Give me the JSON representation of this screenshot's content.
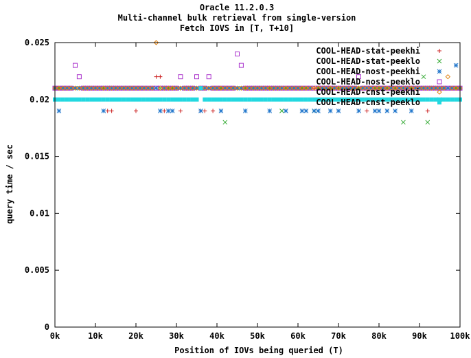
{
  "chart_data": {
    "type": "scatter",
    "title_lines": [
      "Oracle 11.2.0.3",
      "Multi-channel bulk retrieval from single-version",
      "Fetch IOVS in [T, T+10]"
    ],
    "xlabel": "Position of IOVs being queried (T)",
    "ylabel": "query time / sec",
    "xlim": [
      0,
      100000
    ],
    "ylim": [
      0,
      0.025
    ],
    "x_ticks": [
      0,
      10000,
      20000,
      30000,
      40000,
      50000,
      60000,
      70000,
      80000,
      90000,
      100000
    ],
    "x_tick_labels": [
      "0k",
      "10k",
      "20k",
      "30k",
      "40k",
      "50k",
      "60k",
      "70k",
      "80k",
      "90k",
      "100k"
    ],
    "y_ticks": [
      0,
      0.005,
      0.01,
      0.015,
      0.02,
      0.025
    ],
    "y_tick_labels": [
      "0",
      "0.005",
      "0.01",
      "0.015",
      "0.02",
      "0.025"
    ],
    "grid": false,
    "legend_position": "top-right",
    "series": [
      {
        "name": "COOL-HEAD-stat-peekhi",
        "color": "#cc2222",
        "marker": "plus",
        "base": 0.021,
        "points": [
          [
            13000,
            0.019
          ],
          [
            14000,
            0.019
          ],
          [
            20000,
            0.019
          ],
          [
            25000,
            0.022
          ],
          [
            26000,
            0.022
          ],
          [
            27000,
            0.019
          ],
          [
            31000,
            0.019
          ],
          [
            36000,
            0.019
          ],
          [
            37000,
            0.019
          ],
          [
            39000,
            0.019
          ],
          [
            77000,
            0.019
          ],
          [
            92000,
            0.019
          ]
        ]
      },
      {
        "name": "COOL-HEAD-stat-peeklo",
        "color": "#33aa33",
        "marker": "x",
        "base": 0.021,
        "points": [
          [
            42000,
            0.018
          ],
          [
            56000,
            0.019
          ],
          [
            64000,
            0.019
          ],
          [
            86000,
            0.018
          ],
          [
            91000,
            0.022
          ],
          [
            92000,
            0.018
          ],
          [
            95000,
            0.02
          ]
        ]
      },
      {
        "name": "COOL-HEAD-nost-peekhi",
        "color": "#2277cc",
        "marker": "star",
        "base": 0.021,
        "points": [
          [
            1000,
            0.019
          ],
          [
            12000,
            0.019
          ],
          [
            26000,
            0.019
          ],
          [
            28000,
            0.019
          ],
          [
            29000,
            0.019
          ],
          [
            36000,
            0.019
          ],
          [
            41000,
            0.019
          ],
          [
            47000,
            0.019
          ],
          [
            53000,
            0.019
          ],
          [
            57000,
            0.019
          ],
          [
            61000,
            0.019
          ],
          [
            62000,
            0.019
          ],
          [
            64000,
            0.019
          ],
          [
            65000,
            0.019
          ],
          [
            68000,
            0.019
          ],
          [
            70000,
            0.019
          ],
          [
            75000,
            0.019
          ],
          [
            79000,
            0.019
          ],
          [
            80000,
            0.019
          ],
          [
            82000,
            0.019
          ],
          [
            84000,
            0.019
          ],
          [
            88000,
            0.019
          ],
          [
            99000,
            0.023
          ]
        ]
      },
      {
        "name": "COOL-HEAD-nost-peeklo",
        "color": "#aa33cc",
        "marker": "open-square",
        "base": 0.021,
        "points": [
          [
            5000,
            0.023
          ],
          [
            6000,
            0.022
          ],
          [
            31000,
            0.022
          ],
          [
            35000,
            0.022
          ],
          [
            38000,
            0.022
          ],
          [
            45000,
            0.024
          ],
          [
            46000,
            0.023
          ],
          [
            75000,
            0.022
          ]
        ]
      },
      {
        "name": "COOL-HEAD-cnst-peekhi",
        "color": "#e08010",
        "marker": "open-diamond",
        "base": 0.021,
        "points": [
          [
            25000,
            0.025
          ],
          [
            97000,
            0.022
          ]
        ]
      },
      {
        "name": "COOL-HEAD-cnst-peeklo",
        "color": "#22d8e0",
        "marker": "filled-square",
        "base": 0.02,
        "points": [
          [
            36000,
            0.021
          ],
          [
            38000,
            0.02
          ]
        ]
      }
    ]
  }
}
